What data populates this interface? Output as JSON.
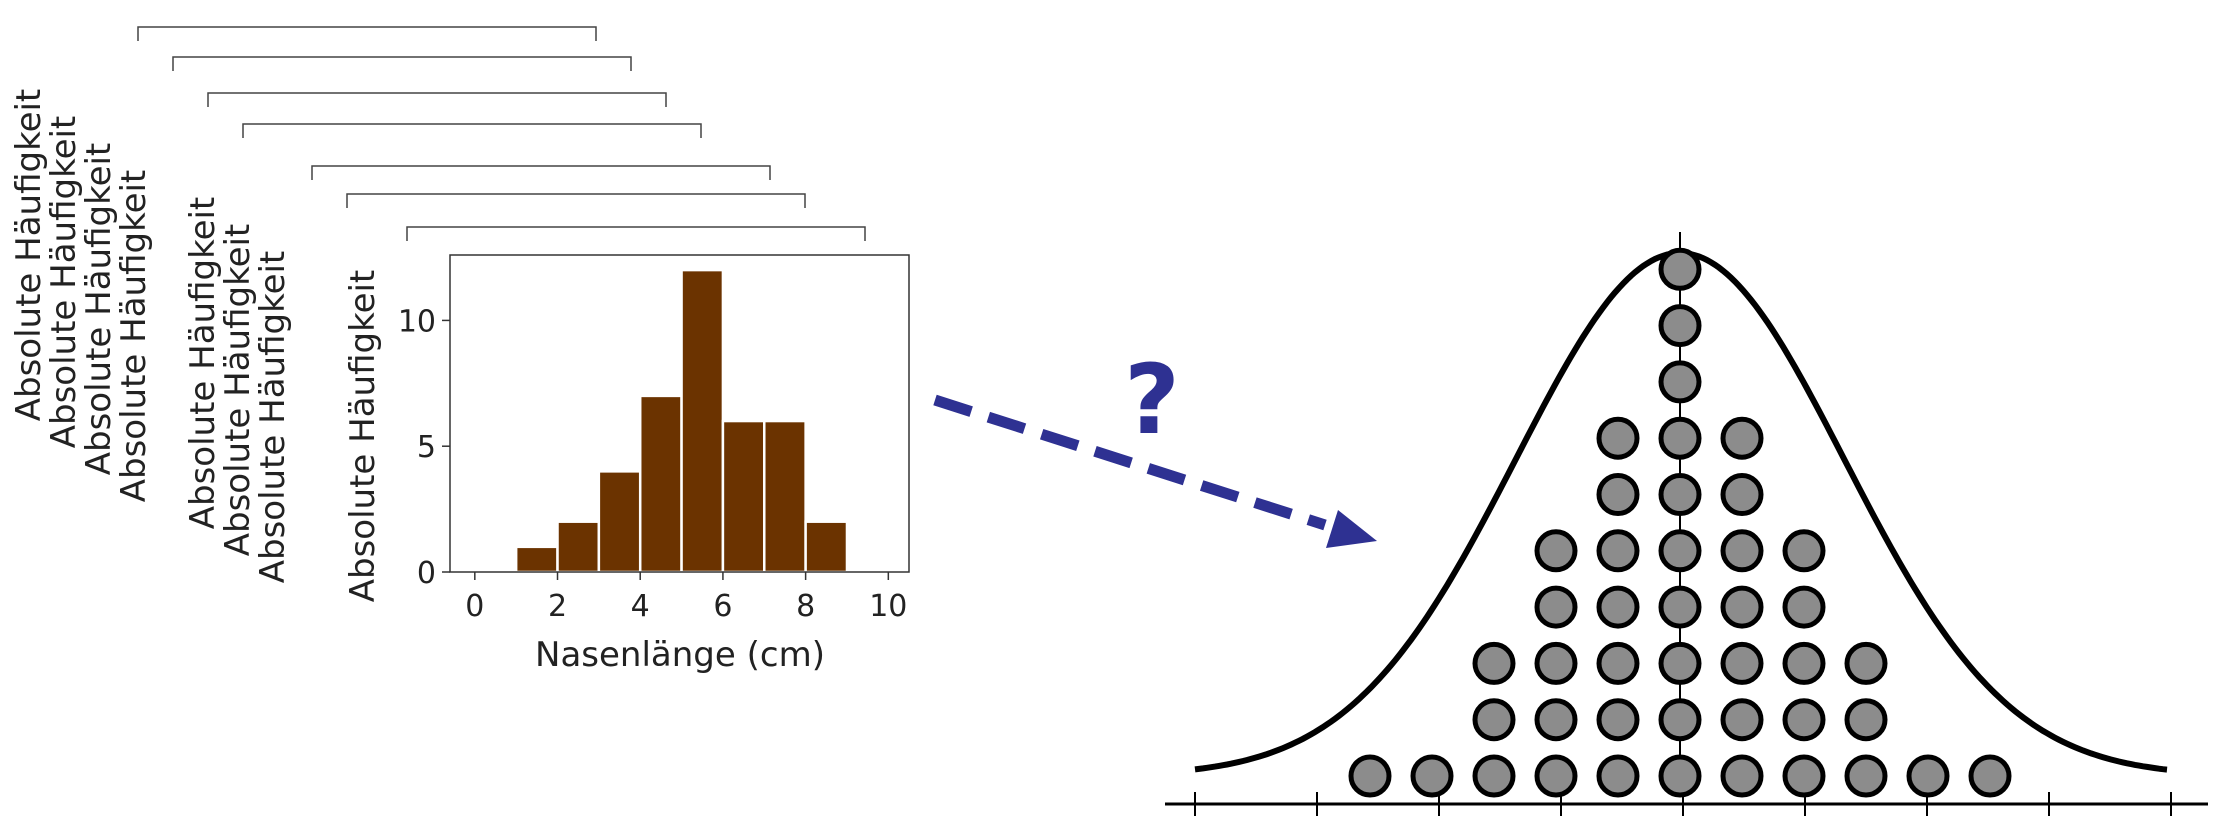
{
  "stacked_ylabel": "Absolute Häufigkeit",
  "stack_count": 8,
  "question_mark": "?",
  "colors": {
    "bar_fill": "#6b3300",
    "arrow": "#2e3192",
    "ball_fill": "#8c8c8c",
    "line": "#000000",
    "axis": "#333333"
  },
  "chart_data": {
    "type": "bar",
    "xlabel": "Nasenlänge (cm)",
    "ylabel": "Absolute Häufigkeit",
    "bin_width": 1,
    "bins": [
      {
        "start": 1,
        "count": 1
      },
      {
        "start": 2,
        "count": 2
      },
      {
        "start": 3,
        "count": 4
      },
      {
        "start": 4,
        "count": 7
      },
      {
        "start": 5,
        "count": 12
      },
      {
        "start": 6,
        "count": 6
      },
      {
        "start": 7,
        "count": 6
      },
      {
        "start": 8,
        "count": 2
      }
    ],
    "xlim": [
      -0.6,
      10.5
    ],
    "ylim": [
      0,
      12.6
    ],
    "xticks": [
      0,
      2,
      4,
      6,
      8,
      10
    ],
    "yticks": [
      0,
      5,
      10
    ]
  },
  "distribution": {
    "column_counts": [
      1,
      1,
      3,
      5,
      7,
      10,
      7,
      5,
      3,
      1,
      1
    ]
  }
}
